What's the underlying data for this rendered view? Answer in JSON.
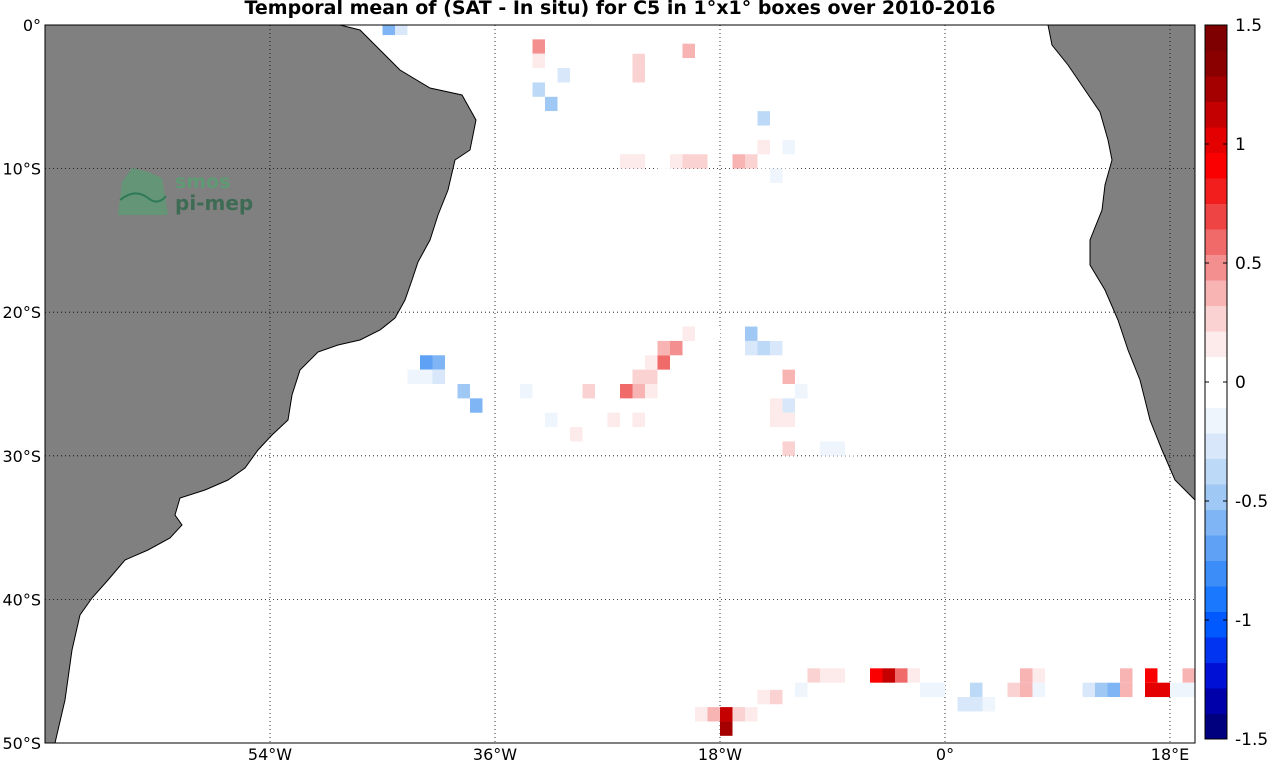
{
  "title": "Temporal mean of (SAT - In situ) for C5 in 1°x1° boxes over 2010-2016",
  "logo": {
    "line1": "smos",
    "line2": "pi-mep"
  },
  "map": {
    "lon_range": [
      -72,
      20
    ],
    "lat_range": [
      -50,
      0
    ],
    "x_ticks": [
      {
        "lon": -54,
        "label": "54°W"
      },
      {
        "lon": -36,
        "label": "36°W"
      },
      {
        "lon": -18,
        "label": "18°W"
      },
      {
        "lon": 0,
        "label": "0°"
      },
      {
        "lon": 18,
        "label": "18°E"
      }
    ],
    "y_ticks": [
      {
        "lat": 0,
        "label": "0°"
      },
      {
        "lat": -10,
        "label": "10°S"
      },
      {
        "lat": -20,
        "label": "20°S"
      },
      {
        "lat": -30,
        "label": "30°S"
      },
      {
        "lat": -40,
        "label": "40°S"
      },
      {
        "lat": -50,
        "label": "50°S"
      }
    ],
    "grid": true,
    "land_color": "#808080"
  },
  "colorbar": {
    "min": -1.5,
    "max": 1.5,
    "tick_labels": [
      {
        "value": 1.5,
        "label": "1.5"
      },
      {
        "value": 1,
        "label": "1"
      },
      {
        "value": 0.5,
        "label": "0.5"
      },
      {
        "value": 0,
        "label": "0"
      },
      {
        "value": -0.5,
        "label": "-0.5"
      },
      {
        "value": -1,
        "label": "-1"
      },
      {
        "value": -1.5,
        "label": "-1.5"
      }
    ],
    "colors": [
      "#00007f",
      "#0000aa",
      "#0010d4",
      "#0034f0",
      "#0058ff",
      "#1a78ff",
      "#3d8df8",
      "#5ea1f5",
      "#7fb5f4",
      "#9fc8f5",
      "#bcd9f7",
      "#d8e8fa",
      "#eef5fd",
      "#ffffff",
      "#ffffff",
      "#fdeaea",
      "#fbd2d2",
      "#f8b3b3",
      "#f48f8f",
      "#f06a6a",
      "#ee4444",
      "#f21e1e",
      "#fa0000",
      "#e40000",
      "#c40000",
      "#a40000",
      "#8a0000",
      "#7f0000"
    ]
  },
  "chart_data": {
    "type": "heatmap",
    "title": "Temporal mean of (SAT - In situ) for C5 in 1°x1° boxes over 2010-2016",
    "xlabel": "",
    "ylabel": "",
    "x_unit": "degrees longitude",
    "y_unit": "degrees latitude",
    "cell_size_deg": 1,
    "value_range": [
      -1.5,
      1.5
    ],
    "cells": [
      {
        "lon": -44.5,
        "lat": -0.2,
        "v": -0.6
      },
      {
        "lon": -43.5,
        "lat": -0.2,
        "v": -0.3
      },
      {
        "lon": -32.5,
        "lat": -1.5,
        "v": 0.5
      },
      {
        "lon": -32.5,
        "lat": -2.5,
        "v": 0.2
      },
      {
        "lon": -31.5,
        "lat": -3.5,
        "v": -0.1
      },
      {
        "lon": -30.5,
        "lat": -3.5,
        "v": -0.3
      },
      {
        "lon": -32.5,
        "lat": -4.5,
        "v": -0.4
      },
      {
        "lon": -31.5,
        "lat": -5.5,
        "v": -0.5
      },
      {
        "lon": -31.5,
        "lat": -6.5,
        "v": -0.1
      },
      {
        "lon": -27.5,
        "lat": -0.8,
        "v": -0.1
      },
      {
        "lon": -26.5,
        "lat": -2.8,
        "v": -0.1
      },
      {
        "lon": -26.5,
        "lat": -7.5,
        "v": -0.1
      },
      {
        "lon": -24.5,
        "lat": -2.5,
        "v": 0.3
      },
      {
        "lon": -24.5,
        "lat": -3.5,
        "v": 0.3
      },
      {
        "lon": -21.5,
        "lat": -0.8,
        "v": 0.1
      },
      {
        "lon": -20.5,
        "lat": -1.8,
        "v": 0.4
      },
      {
        "lon": -25.5,
        "lat": -9.5,
        "v": 0.2
      },
      {
        "lon": -24.5,
        "lat": -9.5,
        "v": 0.2
      },
      {
        "lon": -22.5,
        "lat": -9.5,
        "v": -0.1
      },
      {
        "lon": -22.5,
        "lat": -10.5,
        "v": -0.1
      },
      {
        "lon": -21.5,
        "lat": -9.5,
        "v": 0.2
      },
      {
        "lon": -20.5,
        "lat": -9.5,
        "v": 0.3
      },
      {
        "lon": -19.5,
        "lat": -9.5,
        "v": 0.3
      },
      {
        "lon": -16.5,
        "lat": -9.5,
        "v": 0.4
      },
      {
        "lon": -15.5,
        "lat": -9.5,
        "v": 0.3
      },
      {
        "lon": -16.5,
        "lat": -6.5,
        "v": -0.1
      },
      {
        "lon": -16.5,
        "lat": -7.5,
        "v": -0.1
      },
      {
        "lon": -14.5,
        "lat": -6.5,
        "v": -0.4
      },
      {
        "lon": -14.5,
        "lat": -8.5,
        "v": 0.2
      },
      {
        "lon": -12.5,
        "lat": -8.5,
        "v": -0.2
      },
      {
        "lon": -14.5,
        "lat": -10.5,
        "v": -0.1
      },
      {
        "lon": -13.5,
        "lat": -10.5,
        "v": -0.2
      },
      {
        "lon": -12.5,
        "lat": -10.5,
        "v": -0.1
      },
      {
        "lon": -13.5,
        "lat": -11.5,
        "v": -0.1
      },
      {
        "lon": -39.5,
        "lat": -22.5,
        "v": -0.1
      },
      {
        "lon": -41.5,
        "lat": -23.5,
        "v": -0.7
      },
      {
        "lon": -40.5,
        "lat": -23.5,
        "v": -0.6
      },
      {
        "lon": -39.5,
        "lat": -23.5,
        "v": -0.1
      },
      {
        "lon": -42.5,
        "lat": -24.5,
        "v": -0.2
      },
      {
        "lon": -41.5,
        "lat": -24.5,
        "v": -0.2
      },
      {
        "lon": -40.5,
        "lat": -24.5,
        "v": -0.3
      },
      {
        "lon": -39.5,
        "lat": -24.5,
        "v": -0.1
      },
      {
        "lon": -38.5,
        "lat": -25.5,
        "v": -0.5
      },
      {
        "lon": -37.5,
        "lat": -26.5,
        "v": -0.6
      },
      {
        "lon": -33.5,
        "lat": -25.5,
        "v": -0.2
      },
      {
        "lon": -31.5,
        "lat": -25.5,
        "v": 0.1
      },
      {
        "lon": -31.5,
        "lat": -27.5,
        "v": -0.2
      },
      {
        "lon": -31.5,
        "lat": -28.5,
        "v": -0.1
      },
      {
        "lon": -29.5,
        "lat": -28.5,
        "v": 0.2
      },
      {
        "lon": -28.5,
        "lat": -25.5,
        "v": 0.3
      },
      {
        "lon": -26.5,
        "lat": -27.5,
        "v": 0.2
      },
      {
        "lon": -25.5,
        "lat": -25.5,
        "v": 0.6
      },
      {
        "lon": -24.5,
        "lat": -25.5,
        "v": 0.4
      },
      {
        "lon": -24.5,
        "lat": -24.5,
        "v": 0.3
      },
      {
        "lon": -23.5,
        "lat": -24.5,
        "v": 0.3
      },
      {
        "lon": -23.5,
        "lat": -25.5,
        "v": 0.2
      },
      {
        "lon": -24.5,
        "lat": -27.5,
        "v": 0.2
      },
      {
        "lon": -23.5,
        "lat": -27.5,
        "v": -0.1
      },
      {
        "lon": -23.5,
        "lat": -23.5,
        "v": 0.2
      },
      {
        "lon": -22.5,
        "lat": -23.5,
        "v": 0.6
      },
      {
        "lon": -22.5,
        "lat": -22.5,
        "v": 0.4
      },
      {
        "lon": -21.5,
        "lat": -22.5,
        "v": 0.5
      },
      {
        "lon": -20.5,
        "lat": -21.5,
        "v": 0.2
      },
      {
        "lon": -19.5,
        "lat": -21.5,
        "v": 0.1
      },
      {
        "lon": -18.5,
        "lat": -21.5,
        "v": 0.1
      },
      {
        "lon": -15.5,
        "lat": -21.5,
        "v": -0.5
      },
      {
        "lon": -15.5,
        "lat": -22.5,
        "v": -0.3
      },
      {
        "lon": -14.5,
        "lat": -22.5,
        "v": -0.4
      },
      {
        "lon": -13.5,
        "lat": -22.5,
        "v": -0.3
      },
      {
        "lon": -12.5,
        "lat": -24.5,
        "v": 0.4
      },
      {
        "lon": -11.5,
        "lat": -25.5,
        "v": -0.2
      },
      {
        "lon": -12.5,
        "lat": -26.5,
        "v": -0.3
      },
      {
        "lon": -13.5,
        "lat": -26.5,
        "v": 0.2
      },
      {
        "lon": -13.5,
        "lat": -27.5,
        "v": 0.2
      },
      {
        "lon": -12.5,
        "lat": -27.5,
        "v": 0.2
      },
      {
        "lon": -12.5,
        "lat": -29.5,
        "v": 0.3
      },
      {
        "lon": -9.5,
        "lat": -28.5,
        "v": -0.1
      },
      {
        "lon": -7.5,
        "lat": -28.5,
        "v": -0.1
      },
      {
        "lon": -9.5,
        "lat": -29.5,
        "v": -0.2
      },
      {
        "lon": -8.5,
        "lat": -29.5,
        "v": -0.2
      },
      {
        "lon": -7.5,
        "lat": -29.5,
        "v": -0.1
      },
      {
        "lon": -10.5,
        "lat": -45.3,
        "v": 0.3
      },
      {
        "lon": -9.5,
        "lat": -45.3,
        "v": 0.2
      },
      {
        "lon": -8.5,
        "lat": -45.3,
        "v": 0.2
      },
      {
        "lon": -5.5,
        "lat": -45.3,
        "v": 0.9
      },
      {
        "lon": -4.5,
        "lat": -45.3,
        "v": 1.1
      },
      {
        "lon": -3.5,
        "lat": -45.3,
        "v": 0.6
      },
      {
        "lon": -2.5,
        "lat": -45.3,
        "v": 0.2
      },
      {
        "lon": -11.5,
        "lat": -46.3,
        "v": -0.2
      },
      {
        "lon": -10.5,
        "lat": -46.3,
        "v": -0.1
      },
      {
        "lon": -2.5,
        "lat": -46.3,
        "v": -0.1
      },
      {
        "lon": -1.5,
        "lat": -46.3,
        "v": -0.2
      },
      {
        "lon": -0.5,
        "lat": -46.3,
        "v": -0.2
      },
      {
        "lon": 2.5,
        "lat": -46.3,
        "v": -0.4
      },
      {
        "lon": 3.5,
        "lat": -46.3,
        "v": -0.1
      },
      {
        "lon": 1.5,
        "lat": -47.3,
        "v": -0.3
      },
      {
        "lon": 2.5,
        "lat": -47.3,
        "v": -0.3
      },
      {
        "lon": 3.5,
        "lat": -47.3,
        "v": -0.2
      },
      {
        "lon": 5.5,
        "lat": -46.3,
        "v": 0.3
      },
      {
        "lon": 6.5,
        "lat": -45.3,
        "v": 0.4
      },
      {
        "lon": 6.5,
        "lat": -46.3,
        "v": 0.4
      },
      {
        "lon": 7.5,
        "lat": -45.3,
        "v": 0.2
      },
      {
        "lon": 7.5,
        "lat": -46.3,
        "v": -0.2
      },
      {
        "lon": 10.5,
        "lat": -46.3,
        "v": -0.1
      },
      {
        "lon": 11.5,
        "lat": -46.3,
        "v": -0.3
      },
      {
        "lon": 12.5,
        "lat": -46.3,
        "v": -0.5
      },
      {
        "lon": 13.5,
        "lat": -46.3,
        "v": -0.6
      },
      {
        "lon": 14.5,
        "lat": -46.3,
        "v": 0.4
      },
      {
        "lon": 14.5,
        "lat": -45.3,
        "v": 0.4
      },
      {
        "lon": 16.5,
        "lat": -45.3,
        "v": 0.9
      },
      {
        "lon": 16.5,
        "lat": -46.3,
        "v": 1.0
      },
      {
        "lon": 17.5,
        "lat": -46.3,
        "v": 1.0
      },
      {
        "lon": 18.5,
        "lat": -46.3,
        "v": -0.2
      },
      {
        "lon": 19.5,
        "lat": -45.3,
        "v": 0.4
      },
      {
        "lon": 19.5,
        "lat": -46.3,
        "v": -0.2
      },
      {
        "lon": -14.5,
        "lat": -46.8,
        "v": 0.2
      },
      {
        "lon": -13.5,
        "lat": -46.8,
        "v": 0.3
      },
      {
        "lon": -19.5,
        "lat": -48.0,
        "v": 0.2
      },
      {
        "lon": -18.5,
        "lat": -48.0,
        "v": 0.4
      },
      {
        "lon": -17.5,
        "lat": -48.0,
        "v": 1.1
      },
      {
        "lon": -16.5,
        "lat": -48.0,
        "v": 0.3
      },
      {
        "lon": -15.5,
        "lat": -48.0,
        "v": 0.2
      },
      {
        "lon": -17.5,
        "lat": -49.0,
        "v": 1.2
      }
    ]
  }
}
